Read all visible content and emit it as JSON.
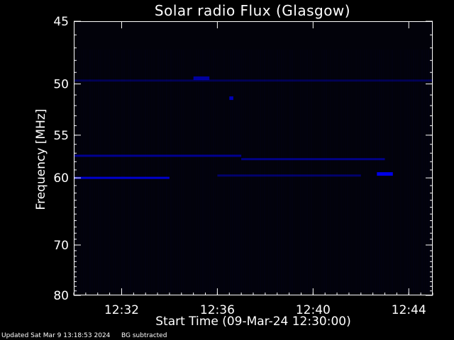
{
  "chart_data": {
    "type": "heatmap",
    "title": "Solar radio Flux (Glasgow)",
    "xlabel": "Start Time (09-Mar-24 12:30:00)",
    "ylabel": "Frequency [MHz]",
    "xlim": [
      "12:30:00",
      "12:45:00"
    ],
    "ylim": [
      80,
      45
    ],
    "x_ticks": [
      "12:32",
      "12:36",
      "12:40",
      "12:44"
    ],
    "y_ticks": [
      45,
      50,
      55,
      60,
      70,
      80
    ],
    "y_scale": "reciprocal",
    "colormap": [
      "#000000",
      "#0000ff"
    ],
    "features": [
      {
        "label": "band",
        "frequency_mhz": 60.0,
        "start": "12:30:00",
        "end": "12:34:00",
        "intensity": 0.8
      },
      {
        "label": "band",
        "frequency_mhz": 57.3,
        "start": "12:30:00",
        "end": "12:37:00",
        "intensity": 0.55
      },
      {
        "label": "band",
        "frequency_mhz": 57.7,
        "start": "12:37:00",
        "end": "12:43:00",
        "intensity": 0.5
      },
      {
        "label": "band",
        "frequency_mhz": 59.7,
        "start": "12:36:00",
        "end": "12:42:00",
        "intensity": 0.4
      },
      {
        "label": "band",
        "frequency_mhz": 49.7,
        "start": "12:30:00",
        "end": "12:45:00",
        "intensity": 0.3
      },
      {
        "label": "spot",
        "frequency_mhz": 59.5,
        "start": "12:42:40",
        "end": "12:43:20",
        "intensity": 0.9
      },
      {
        "label": "spot",
        "frequency_mhz": 51.3,
        "start": "12:36:30",
        "end": "12:36:40",
        "intensity": 0.7
      },
      {
        "label": "spot",
        "frequency_mhz": 49.5,
        "start": "12:35:00",
        "end": "12:35:40",
        "intensity": 0.6
      }
    ]
  },
  "footer": {
    "updated": "Updated Sat Mar  9 13:18:53 2024",
    "bg_note": "BG subtracted"
  },
  "colors": {
    "background": "#000000",
    "axes": "#ffffff",
    "signal": "#0000ff"
  }
}
